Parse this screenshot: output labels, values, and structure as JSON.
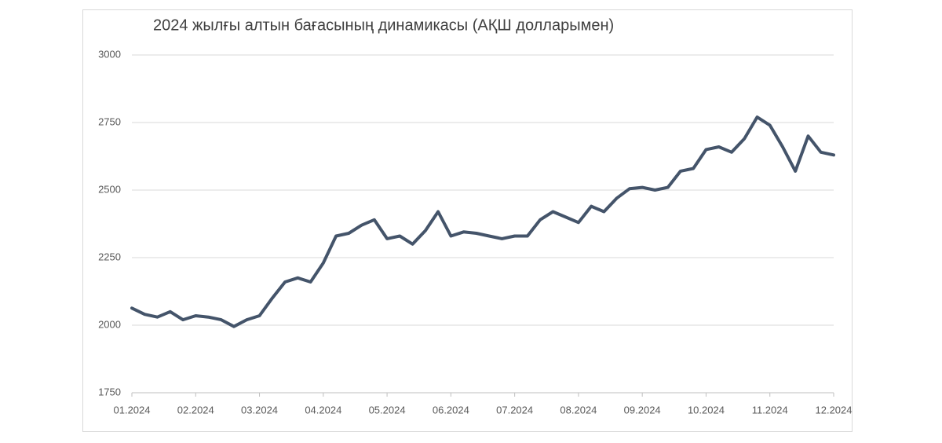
{
  "chart_data": {
    "type": "line",
    "title": "2024 жылғы алтын бағасының динамикасы (АҚШ долларымен)",
    "categories": [
      "01.2024",
      null,
      null,
      null,
      null,
      "02.2024",
      null,
      null,
      null,
      null,
      "03.2024",
      null,
      null,
      null,
      null,
      "04.2024",
      null,
      null,
      null,
      null,
      "05.2024",
      null,
      null,
      null,
      null,
      "06.2024",
      null,
      null,
      null,
      null,
      "07.2024",
      null,
      null,
      null,
      null,
      "08.2024",
      null,
      null,
      null,
      null,
      "09.2024",
      null,
      null,
      null,
      null,
      "10.2024",
      null,
      null,
      null,
      null,
      "11.2024",
      null,
      null,
      null,
      null,
      "12.2024"
    ],
    "values": [
      2063,
      2040,
      2030,
      2050,
      2020,
      2035,
      2030,
      2020,
      1995,
      2020,
      2035,
      2100,
      2160,
      2175,
      2160,
      2230,
      2330,
      2340,
      2370,
      2390,
      2320,
      2330,
      2300,
      2350,
      2420,
      2330,
      2345,
      2340,
      2330,
      2320,
      2330,
      2330,
      2390,
      2420,
      2400,
      2380,
      2440,
      2420,
      2470,
      2505,
      2510,
      2500,
      2510,
      2570,
      2580,
      2650,
      2660,
      2640,
      2690,
      2770,
      2740,
      2660,
      2570,
      2700,
      2640,
      2630
    ],
    "color": "#44546a",
    "ylim": [
      1750,
      3000
    ],
    "yticks": [
      1750,
      2000,
      2250,
      2500,
      2750,
      3000
    ],
    "grid": true
  }
}
